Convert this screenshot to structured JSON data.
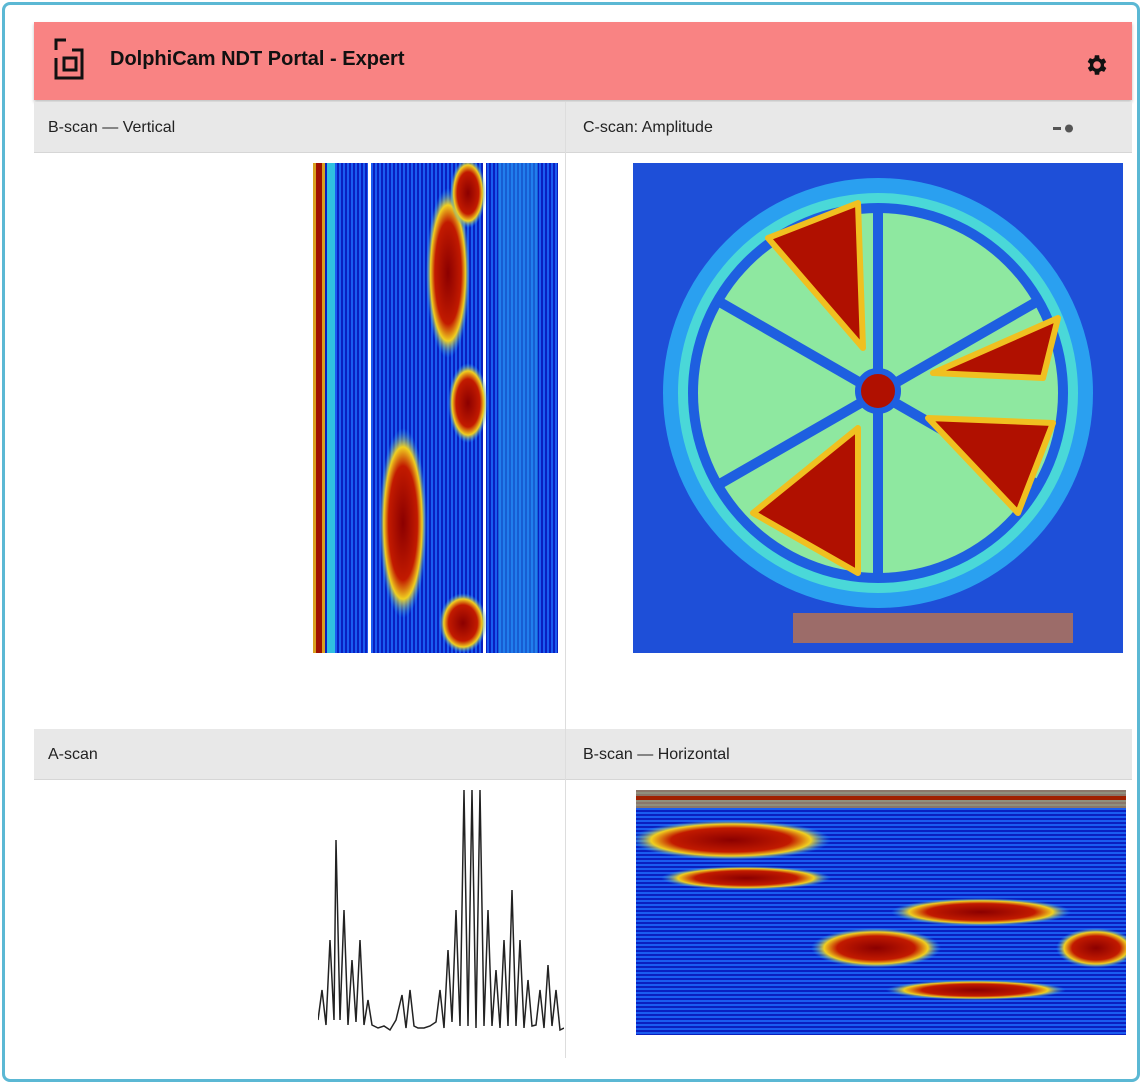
{
  "header": {
    "title": "DolphiCam NDT Portal - Expert"
  },
  "panels": [
    {
      "title": "B-scan — Vertical"
    },
    {
      "title": "C-scan: Amplitude"
    },
    {
      "title": "A-scan"
    },
    {
      "title": "B-scan — Horizontal"
    }
  ]
}
